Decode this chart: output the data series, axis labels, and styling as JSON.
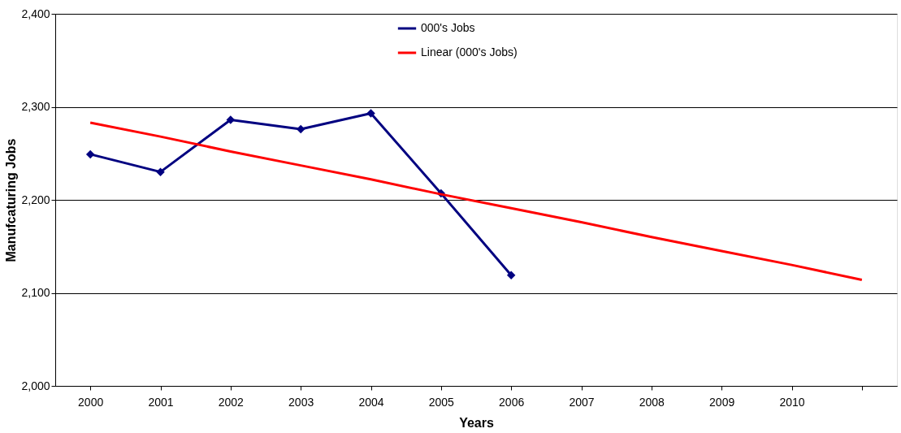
{
  "chart_data": {
    "type": "line",
    "xlabel": "Years",
    "ylabel": "Manufcaturing Jobs",
    "categories": [
      "2000",
      "2001",
      "2002",
      "2003",
      "2004",
      "2005",
      "2006",
      "2007",
      "2008",
      "2009",
      "2010",
      null
    ],
    "series": [
      {
        "name": "000's Jobs",
        "color": "#000080",
        "values": [
          2249,
          2230,
          2286,
          2276,
          2293,
          2207,
          2119,
          null,
          null,
          null,
          null,
          null
        ]
      },
      {
        "name": "Linear (000's Jobs)",
        "color": "#ff0000",
        "type": "line",
        "marker": "none",
        "values": [
          2283,
          2268,
          2252,
          2237,
          2222,
          2206,
          2191,
          2176,
          2160,
          2145,
          2130,
          2114
        ]
      }
    ],
    "ylim": [
      2000,
      2400
    ],
    "yticks": [
      {
        "value": 2000,
        "label": "2,000"
      },
      {
        "value": 2100,
        "label": "2,100"
      },
      {
        "value": 2200,
        "label": "2,200"
      },
      {
        "value": 2300,
        "label": "2,300"
      },
      {
        "value": 2400,
        "label": "2,400"
      }
    ],
    "grid": "y",
    "legend": "top",
    "marker": "diamond",
    "line_style": "solid"
  }
}
